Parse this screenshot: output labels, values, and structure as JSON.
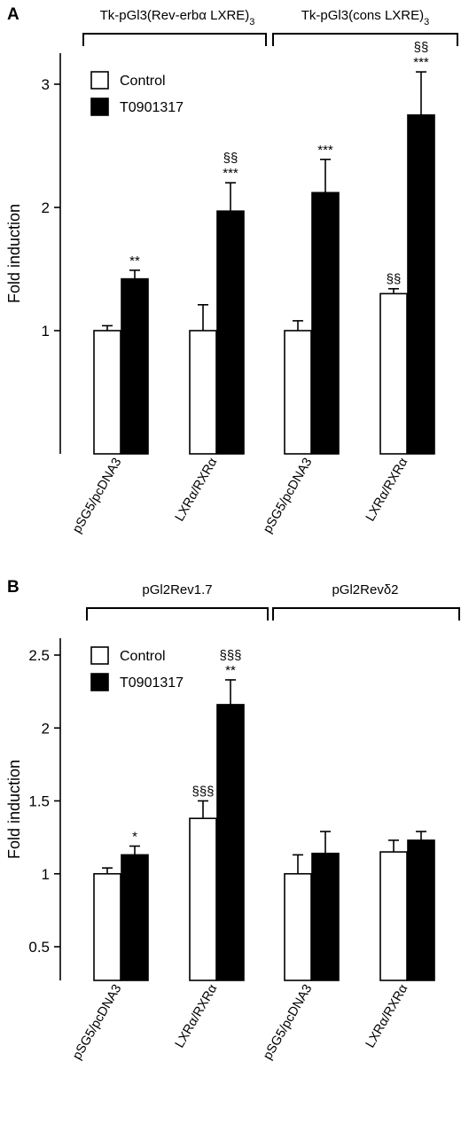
{
  "colors": {
    "control": "#ffffff",
    "treated": "#000000",
    "stroke": "#000000"
  },
  "chart_data": [
    {
      "panel": "A",
      "type": "bar",
      "ylabel": "Fold induction",
      "ylim": [
        0,
        3.3
      ],
      "yticks": [
        1,
        2,
        3
      ],
      "group_labels": [
        {
          "text": "Tk-pGl3(Rev-erbα  LXRE)",
          "sub": "3"
        },
        {
          "text": "Tk-pGl3(cons LXRE)",
          "sub": "3"
        }
      ],
      "legend": [
        "Control",
        "T0901317"
      ],
      "categories": [
        "pSG5/pcDNA3",
        "LXRα/RXRα",
        "pSG5/pcDNA3",
        "LXRα/RXRα"
      ],
      "series": [
        {
          "name": "Control",
          "values": [
            1.0,
            1.0,
            1.0,
            1.3
          ],
          "errors": [
            0.04,
            0.21,
            0.08,
            0.04
          ],
          "labels": [
            "",
            "",
            "",
            "§§"
          ]
        },
        {
          "name": "T0901317",
          "values": [
            1.42,
            1.97,
            2.12,
            2.75
          ],
          "errors": [
            0.07,
            0.23,
            0.27,
            0.35
          ],
          "labels": [
            "**",
            "§§\n***",
            "***",
            "§§\n***"
          ]
        }
      ]
    },
    {
      "panel": "B",
      "type": "bar",
      "ylabel": "Fold induction",
      "ylim": [
        0,
        2.6
      ],
      "yticks": [
        0.5,
        1,
        1.5,
        2,
        2.5
      ],
      "group_labels": [
        {
          "text": "pGl2Rev1.7",
          "sub": ""
        },
        {
          "text": "pGl2Revδ2",
          "sub": ""
        }
      ],
      "legend": [
        "Control",
        "T0901317"
      ],
      "categories": [
        "pSG5/pcDNA3",
        "LXRα/RXRα",
        "pSG5/pcDNA3",
        "LXRα/RXRα"
      ],
      "series": [
        {
          "name": "Control",
          "values": [
            1.0,
            1.38,
            1.0,
            1.15
          ],
          "errors": [
            0.04,
            0.12,
            0.13,
            0.08
          ],
          "labels": [
            "",
            "§§§",
            "",
            ""
          ]
        },
        {
          "name": "T0901317",
          "values": [
            1.13,
            2.16,
            1.14,
            1.23
          ],
          "errors": [
            0.06,
            0.17,
            0.15,
            0.06
          ],
          "labels": [
            "*",
            "§§§\n**",
            "",
            ""
          ]
        }
      ]
    }
  ]
}
